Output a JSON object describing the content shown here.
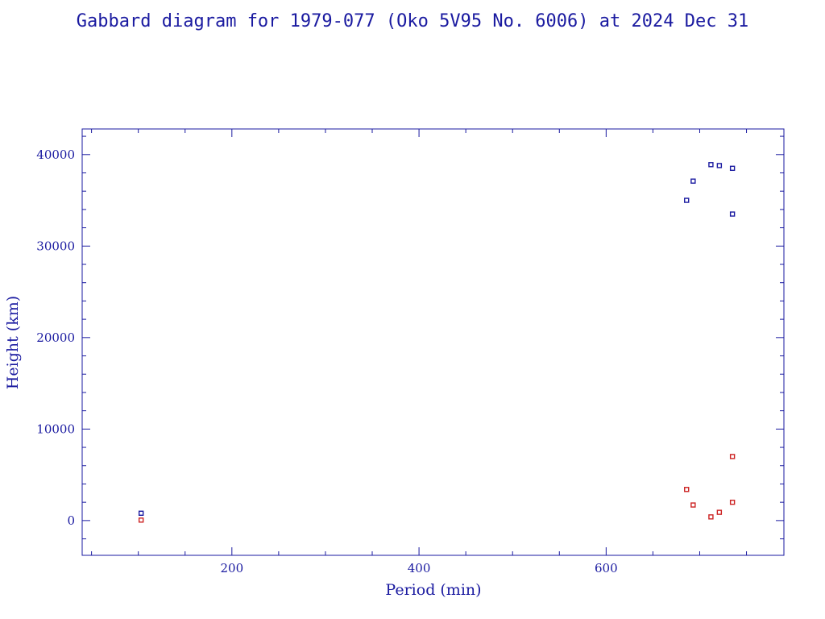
{
  "title": "Gabbard diagram for 1979-077 (Oko 5V95 No. 6006) at 2024 Dec 31",
  "chart_data": {
    "type": "scatter",
    "xlabel": "Period (min)",
    "ylabel": "Height (km)",
    "xlim": [
      40,
      790
    ],
    "ylim": [
      -3800,
      42800
    ],
    "xticks_major": [
      200,
      400,
      600
    ],
    "yticks_major": [
      0,
      10000,
      20000,
      30000,
      40000
    ],
    "grid": false,
    "colors": {
      "axis": "#1a1aa0",
      "apogee": "#1a1aa0",
      "perigee": "#cc2222"
    },
    "series": [
      {
        "marker": "square",
        "color": "#1a1aa0",
        "points": [
          {
            "x": 103,
            "y": 800
          },
          {
            "x": 686,
            "y": 35000
          },
          {
            "x": 693,
            "y": 37100
          },
          {
            "x": 712,
            "y": 38900
          },
          {
            "x": 721,
            "y": 38800
          },
          {
            "x": 735,
            "y": 38500
          },
          {
            "x": 735,
            "y": 33500
          }
        ]
      },
      {
        "marker": "square",
        "color": "#cc2222",
        "points": [
          {
            "x": 103,
            "y": 50
          },
          {
            "x": 686,
            "y": 3400
          },
          {
            "x": 693,
            "y": 1700
          },
          {
            "x": 712,
            "y": 400
          },
          {
            "x": 721,
            "y": 900
          },
          {
            "x": 735,
            "y": 2000
          },
          {
            "x": 735,
            "y": 7000
          }
        ]
      }
    ]
  }
}
